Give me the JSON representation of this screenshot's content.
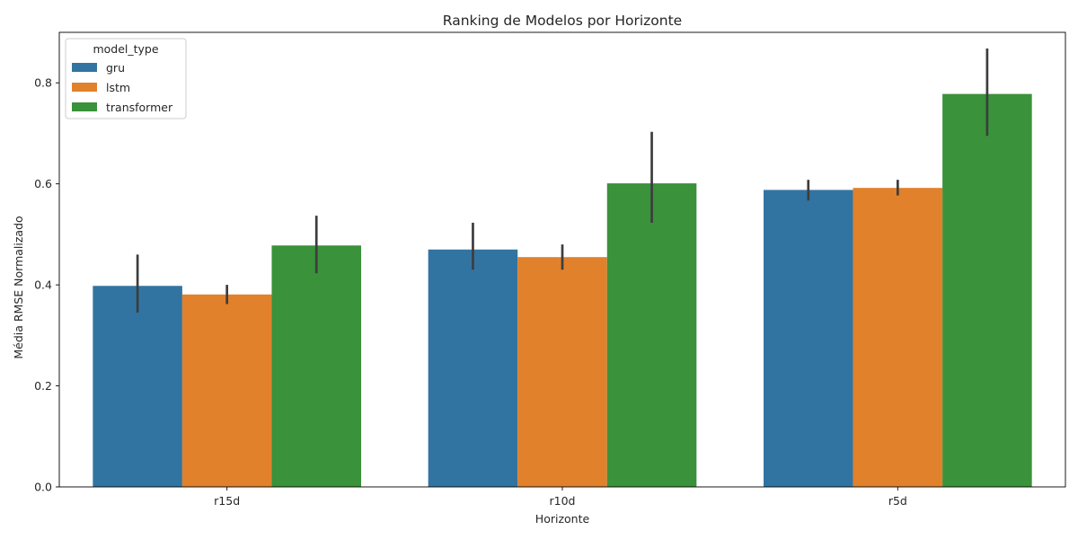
{
  "chart_data": {
    "type": "bar",
    "title": "Ranking de Modelos por Horizonte",
    "xlabel": "Horizonte",
    "ylabel": "Média RMSE Normalizado",
    "categories": [
      "r15d",
      "r10d",
      "r5d"
    ],
    "ylim": [
      0,
      0.9
    ],
    "yticks": [
      "0.0",
      "0.2",
      "0.4",
      "0.6",
      "0.8"
    ],
    "legend": {
      "title": "model_type",
      "placement": "top-left"
    },
    "series": [
      {
        "name": "gru",
        "color": "#3274a1",
        "values": [
          0.398,
          0.47,
          0.588
        ],
        "err_low": [
          0.345,
          0.43,
          0.567
        ],
        "err_high": [
          0.46,
          0.523,
          0.608
        ]
      },
      {
        "name": "lstm",
        "color": "#e1812c",
        "values": [
          0.381,
          0.455,
          0.592
        ],
        "err_low": [
          0.362,
          0.43,
          0.577
        ],
        "err_high": [
          0.4,
          0.48,
          0.608
        ]
      },
      {
        "name": "transformer",
        "color": "#3a923a",
        "values": [
          0.478,
          0.601,
          0.778
        ],
        "err_low": [
          0.423,
          0.523,
          0.695
        ],
        "err_high": [
          0.537,
          0.703,
          0.868
        ]
      }
    ]
  }
}
